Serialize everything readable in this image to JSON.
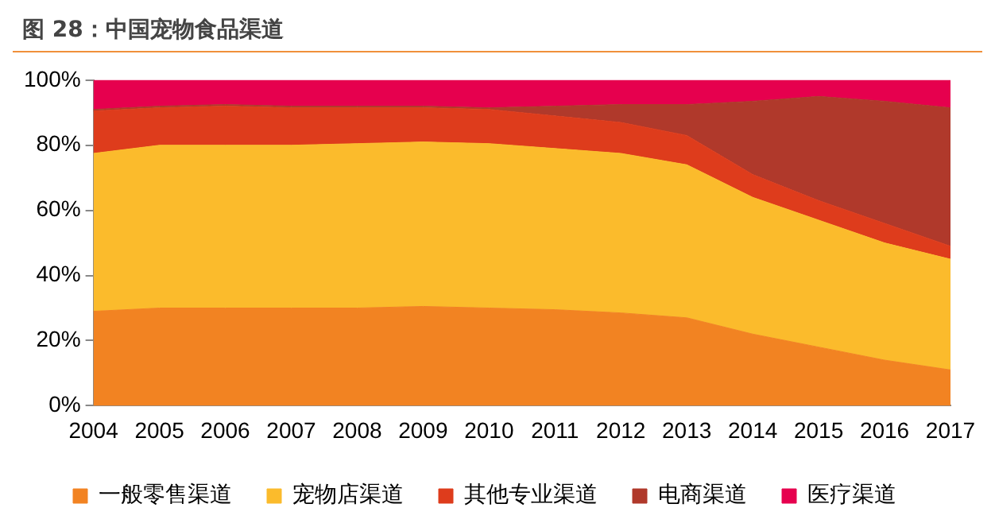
{
  "chart_data": {
    "type": "area",
    "title": "图 28：中国宠物食品渠道",
    "stacked": true,
    "categories": [
      "2004",
      "2005",
      "2006",
      "2007",
      "2008",
      "2009",
      "2010",
      "2011",
      "2012",
      "2013",
      "2014",
      "2015",
      "2016",
      "2017"
    ],
    "series": [
      {
        "name": "一般零售渠道",
        "color": "#f28322",
        "values": [
          29,
          30,
          30,
          30,
          30,
          30.5,
          30,
          29.5,
          28.5,
          27,
          22,
          18,
          14,
          11
        ]
      },
      {
        "name": "宠物店渠道",
        "color": "#fbbb2c",
        "values": [
          48.5,
          50,
          50,
          50,
          50.5,
          50.5,
          50.5,
          49.5,
          49,
          47,
          42,
          39,
          36,
          34
        ]
      },
      {
        "name": "其他专业渠道",
        "color": "#de3c1c",
        "values": [
          13,
          11.5,
          12,
          11.5,
          11,
          10.5,
          10.5,
          10,
          9.5,
          9,
          7,
          6,
          6,
          4
        ]
      },
      {
        "name": "电商渠道",
        "color": "#b0392b",
        "values": [
          0.5,
          0.5,
          0.5,
          0.5,
          0.5,
          0.5,
          0.5,
          3,
          5.5,
          9.5,
          22.5,
          32,
          37.5,
          42.5
        ]
      },
      {
        "name": "医疗渠道",
        "color": "#e6004e",
        "values": [
          9,
          8,
          7.5,
          8,
          8,
          8,
          8.5,
          8,
          7.5,
          7.5,
          6.5,
          5,
          6.5,
          8.5
        ]
      }
    ],
    "ylim": [
      0,
      100
    ],
    "yticks": [
      {
        "value": 0,
        "label": "0%"
      },
      {
        "value": 20,
        "label": "20%"
      },
      {
        "value": 40,
        "label": "40%"
      },
      {
        "value": 60,
        "label": "60%"
      },
      {
        "value": 80,
        "label": "80%"
      },
      {
        "value": 100,
        "label": "100%"
      }
    ],
    "grid": false,
    "legend": "bottom"
  }
}
